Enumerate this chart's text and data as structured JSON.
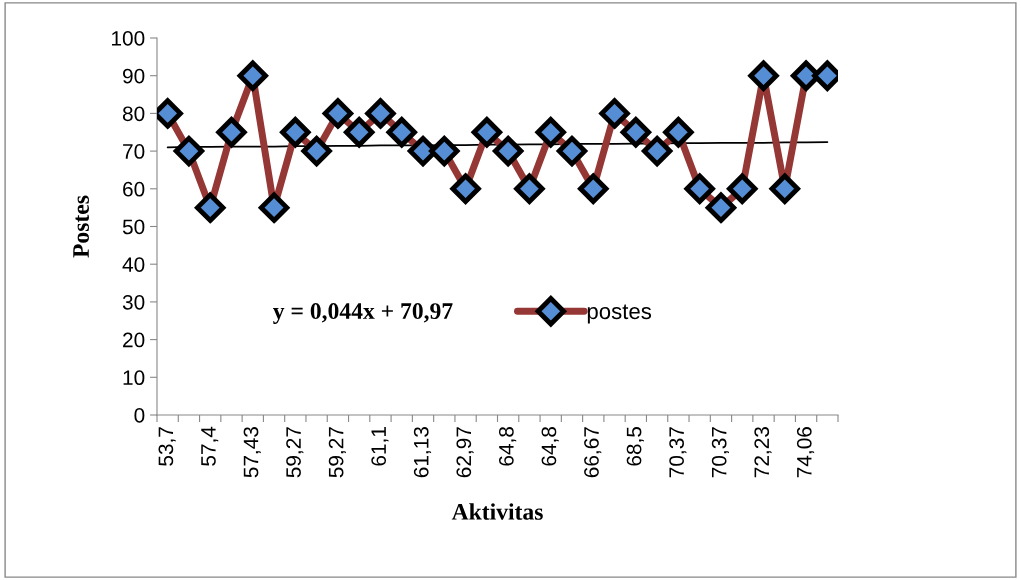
{
  "chart_data": {
    "type": "line",
    "xlabel": "Aktivitas",
    "ylabel": "Postes",
    "categories": [
      "53,7",
      null,
      "57,4",
      null,
      "57,43",
      null,
      "59,27",
      null,
      "59,27",
      null,
      "61,1",
      null,
      "61,13",
      null,
      "62,97",
      null,
      "64,8",
      null,
      "64,8",
      null,
      "66,67",
      null,
      "68,5",
      null,
      "70,37",
      null,
      "70,37",
      null,
      "72,23",
      null,
      "74,06",
      null
    ],
    "series": [
      {
        "name": "postes",
        "color": "#953735",
        "marker": "diamond",
        "values": [
          80,
          70,
          55,
          75,
          90,
          55,
          75,
          70,
          80,
          75,
          80,
          75,
          70,
          70,
          60,
          75,
          70,
          60,
          75,
          70,
          60,
          80,
          75,
          70,
          75,
          60,
          55,
          60,
          90,
          60,
          90,
          90
        ]
      },
      {
        "type": "line",
        "color": "#000000",
        "marker": "none",
        "values": [
          71.0,
          71.1,
          71.1,
          71.2,
          71.2,
          71.2,
          71.3,
          71.3,
          71.4,
          71.4,
          71.5,
          71.5,
          71.5,
          71.6,
          71.6,
          71.7,
          71.7,
          71.8,
          71.8,
          71.9,
          71.9,
          71.9,
          72.0,
          72.0,
          72.1,
          72.1,
          72.2,
          72.2,
          72.2,
          72.3,
          72.3,
          72.4
        ]
      }
    ],
    "annotations": [
      "y = 0,044x + 70,97"
    ],
    "ylim": [
      0,
      100
    ],
    "yticks": [
      0,
      10,
      20,
      30,
      40,
      50,
      60,
      70,
      80,
      90,
      100
    ],
    "grid": false,
    "legend": "right"
  }
}
